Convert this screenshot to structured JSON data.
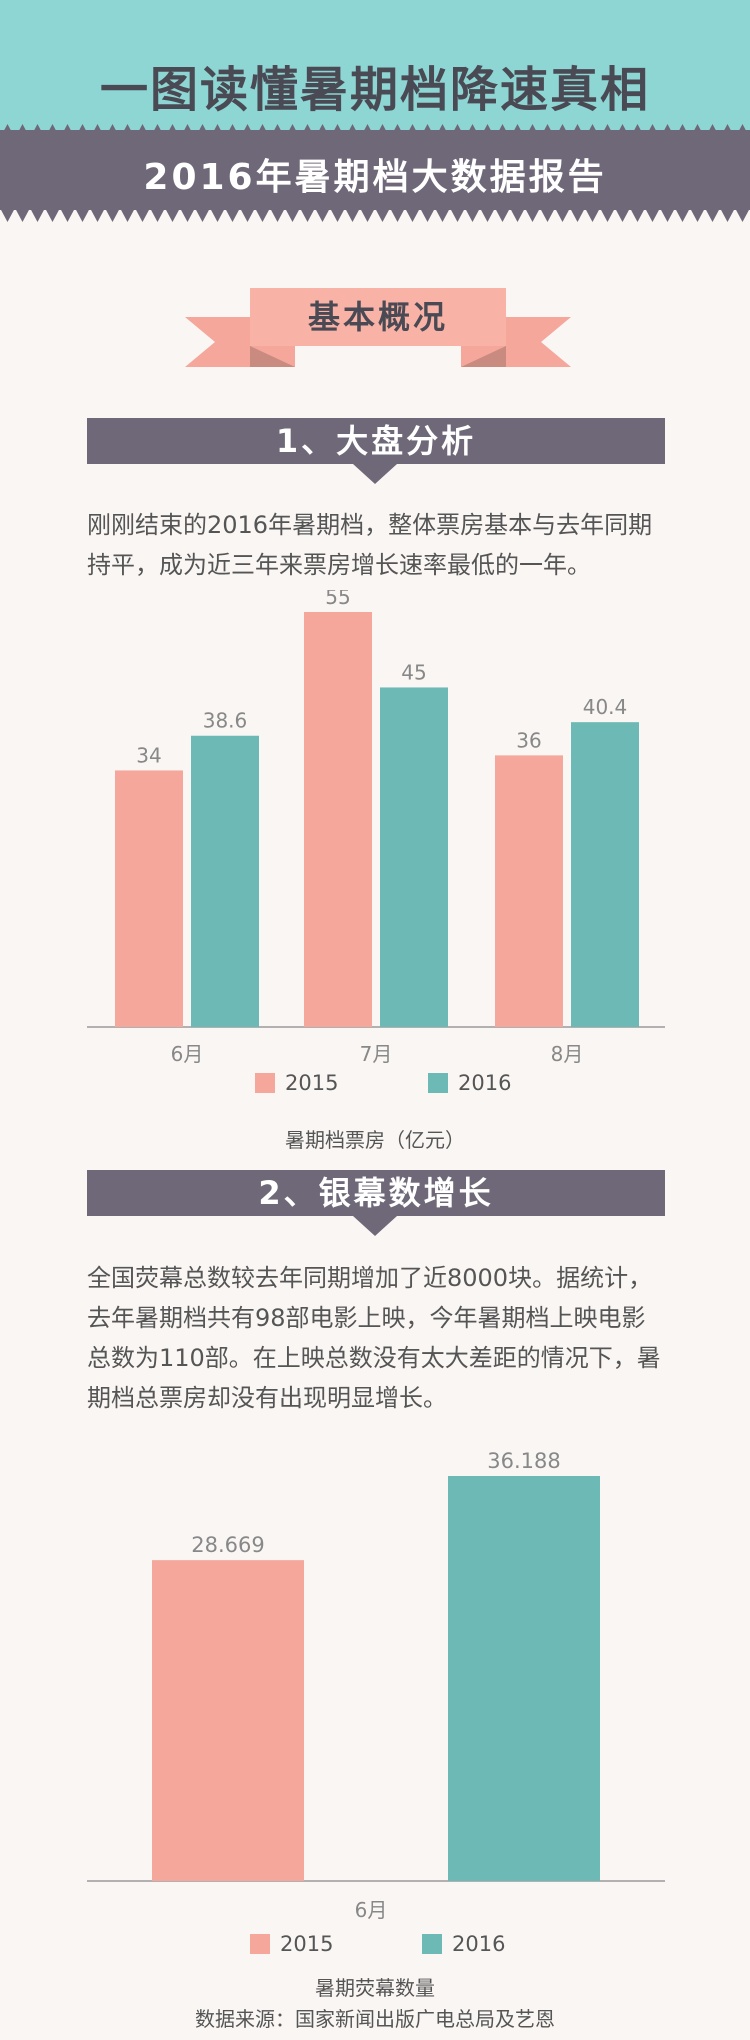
{
  "colors": {
    "teal": "#8ed6d3",
    "slate": "#6f6878",
    "pink": "#f4a79a",
    "pink_dark": "#e8968a",
    "bar_teal": "#6cb9b6"
  },
  "header": {
    "title": "一图读懂暑期档降速真相",
    "subtitle": "2016年暑期档大数据报告"
  },
  "ribbon": {
    "label": "基本概况"
  },
  "section1": {
    "title": "1、大盘分析",
    "text": "刚刚结束的2016年暑期档，整体票房基本与去年同期持平，成为近三年来票房增长速率最低的一年。"
  },
  "section2": {
    "title": "2、银幕数增长",
    "text": "全国荧幕总数较去年同期增加了近8000块。据统计，去年暑期档共有98部电影上映，今年暑期档上映电影总数为110部。在上映总数没有太大差距的情况下，暑期档总票房却没有出现明显增长。"
  },
  "chart_data": [
    {
      "type": "bar",
      "categories": [
        "6月",
        "7月",
        "8月"
      ],
      "series": [
        {
          "name": "2015",
          "values": [
            34,
            55,
            36
          ],
          "labels": [
            "34",
            "55",
            "36"
          ],
          "color": "#f4a79a"
        },
        {
          "name": "2016",
          "values": [
            38.6,
            45,
            40.4
          ],
          "labels": [
            "38.6",
            "45",
            "40.4"
          ],
          "color": "#6cb9b6"
        }
      ],
      "title": "暑期档票房（亿元）",
      "ylim": [
        0,
        55
      ]
    },
    {
      "type": "bar",
      "categories": [
        "6月"
      ],
      "series": [
        {
          "name": "2015",
          "values": [
            28.669
          ],
          "labels": [
            "28.669"
          ],
          "color": "#f4a79a"
        },
        {
          "name": "2016",
          "values": [
            36.188
          ],
          "labels": [
            "36.188"
          ],
          "color": "#6cb9b6"
        }
      ],
      "title": "暑期荧幕数量",
      "ylim": [
        0,
        36.188
      ]
    }
  ],
  "footer": {
    "source": "数据来源：国家新闻出版广电总局及艺恩"
  }
}
